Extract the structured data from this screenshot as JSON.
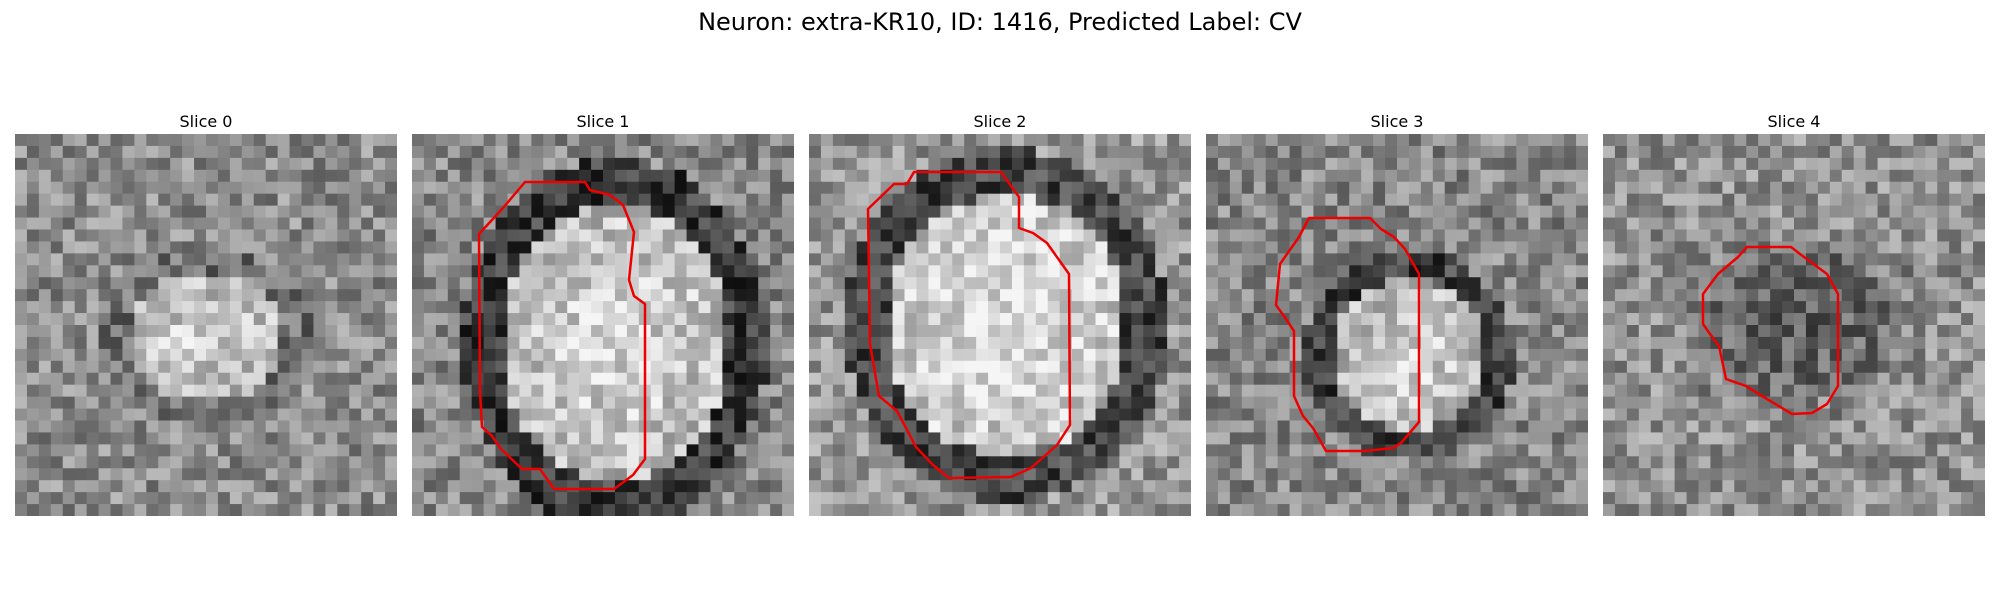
{
  "figure": {
    "title": "Neuron: extra-KR10, ID: 1416, Predicted Label: CV",
    "contour_color": "#ee0000"
  },
  "panels": [
    {
      "title": "Slice 0",
      "has_contour": false
    },
    {
      "title": "Slice 1",
      "has_contour": true
    },
    {
      "title": "Slice 2",
      "has_contour": true
    },
    {
      "title": "Slice 3",
      "has_contour": true
    },
    {
      "title": "Slice 4",
      "has_contour": true
    }
  ]
}
